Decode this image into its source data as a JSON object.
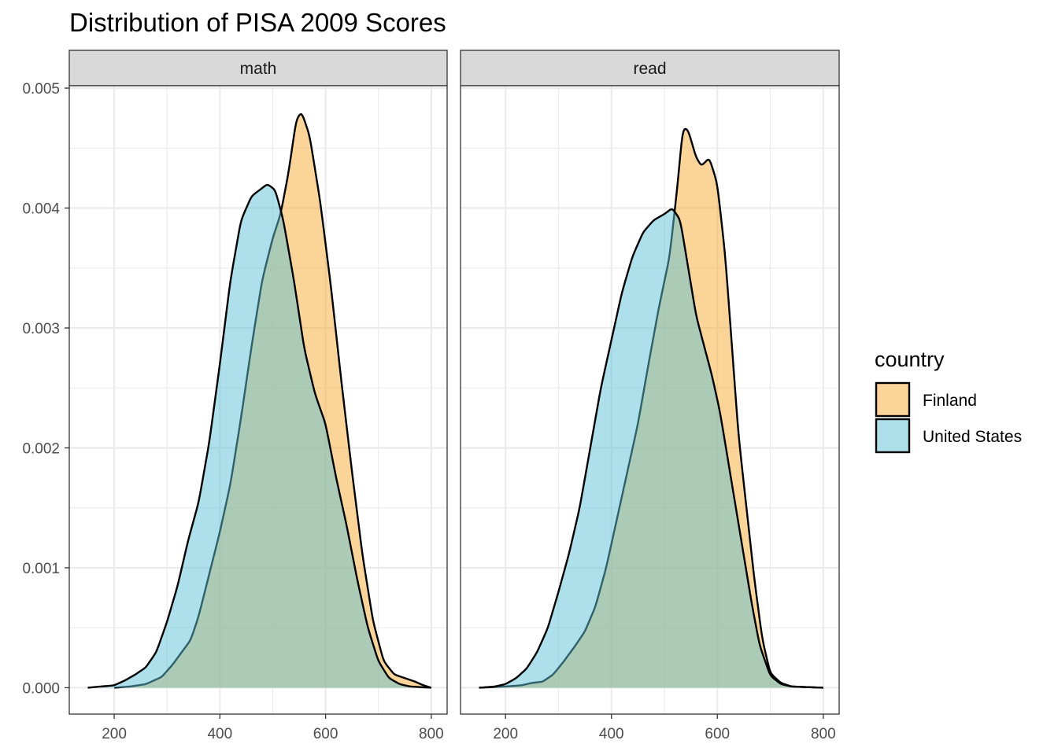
{
  "chart_data": {
    "type": "area",
    "title": "Distribution of PISA 2009 Scores",
    "xlabel": "",
    "ylabel": "",
    "xlim": [
      115,
      830
    ],
    "ylim": [
      -0.00022,
      0.00502
    ],
    "x_ticks": [
      200,
      400,
      600,
      800
    ],
    "y_ticks": [
      0,
      0.001,
      0.002,
      0.003,
      0.004,
      0.005
    ],
    "x_tick_labels": [
      "200",
      "400",
      "600",
      "800"
    ],
    "y_tick_labels": [
      "0.000",
      "0.001",
      "0.002",
      "0.003",
      "0.004",
      "0.005"
    ],
    "grid": true,
    "legend": {
      "title": "country",
      "position": "right",
      "entries": [
        {
          "label": "Finland",
          "color": "#F8A931"
        },
        {
          "label": "United States",
          "color": "#5BC2D6"
        }
      ]
    },
    "fill_alpha": 0.5,
    "panels": [
      {
        "label": "math",
        "series": [
          {
            "name": "Finland",
            "color": "#F8A931",
            "points": [
              [
                200,
                0
              ],
              [
                230,
                1e-05
              ],
              [
                260,
                3e-05
              ],
              [
                290,
                9e-05
              ],
              [
                310,
                0.00019
              ],
              [
                330,
                0.00031
              ],
              [
                345,
                0.0004
              ],
              [
                360,
                0.0006
              ],
              [
                380,
                0.00095
              ],
              [
                400,
                0.0013
              ],
              [
                420,
                0.0017
              ],
              [
                440,
                0.00225
              ],
              [
                460,
                0.00285
              ],
              [
                480,
                0.0034
              ],
              [
                500,
                0.00375
              ],
              [
                515,
                0.00395
              ],
              [
                530,
                0.0043
              ],
              [
                545,
                0.00475
              ],
              [
                555,
                0.0048
              ],
              [
                570,
                0.0046
              ],
              [
                590,
                0.00405
              ],
              [
                610,
                0.00335
              ],
              [
                630,
                0.00255
              ],
              [
                650,
                0.0018
              ],
              [
                670,
                0.0011
              ],
              [
                690,
                0.00055
              ],
              [
                710,
                0.00022
              ],
              [
                730,
                0.00011
              ],
              [
                750,
                8e-05
              ],
              [
                770,
                5e-05
              ],
              [
                785,
                2e-05
              ],
              [
                800,
                0
              ]
            ]
          },
          {
            "name": "United States",
            "color": "#5BC2D6",
            "points": [
              [
                150,
                0
              ],
              [
                200,
                2e-05
              ],
              [
                220,
                6e-05
              ],
              [
                240,
                0.00011
              ],
              [
                260,
                0.00017
              ],
              [
                280,
                0.0003
              ],
              [
                300,
                0.00055
              ],
              [
                320,
                0.00085
              ],
              [
                340,
                0.00123
              ],
              [
                360,
                0.00155
              ],
              [
                380,
                0.00205
              ],
              [
                400,
                0.0027
              ],
              [
                420,
                0.0034
              ],
              [
                440,
                0.0039
              ],
              [
                460,
                0.0041
              ],
              [
                475,
                0.00415
              ],
              [
                490,
                0.0042
              ],
              [
                505,
                0.00415
              ],
              [
                520,
                0.0039
              ],
              [
                540,
                0.0034
              ],
              [
                560,
                0.00282
              ],
              [
                580,
                0.00245
              ],
              [
                600,
                0.0022
              ],
              [
                620,
                0.00175
              ],
              [
                640,
                0.00135
              ],
              [
                660,
                0.0009
              ],
              [
                680,
                0.0005
              ],
              [
                700,
                0.00022
              ],
              [
                720,
                8e-05
              ],
              [
                740,
                3e-05
              ],
              [
                760,
                1e-05
              ],
              [
                800,
                0
              ]
            ]
          }
        ]
      },
      {
        "label": "read",
        "series": [
          {
            "name": "Finland",
            "color": "#F8A931",
            "points": [
              [
                150,
                0
              ],
              [
                200,
                1e-05
              ],
              [
                230,
                2e-05
              ],
              [
                250,
                4e-05
              ],
              [
                270,
                5e-05
              ],
              [
                290,
                0.00011
              ],
              [
                310,
                0.00022
              ],
              [
                330,
                0.00034
              ],
              [
                350,
                0.00047
              ],
              [
                370,
                0.00068
              ],
              [
                390,
                0.001
              ],
              [
                410,
                0.0014
              ],
              [
                430,
                0.0018
              ],
              [
                450,
                0.0022
              ],
              [
                470,
                0.0027
              ],
              [
                490,
                0.00318
              ],
              [
                510,
                0.0036
              ],
              [
                525,
                0.0042
              ],
              [
                535,
                0.00468
              ],
              [
                545,
                0.00465
              ],
              [
                560,
                0.00442
              ],
              [
                570,
                0.00435
              ],
              [
                585,
                0.00442
              ],
              [
                600,
                0.0042
              ],
              [
                615,
                0.0036
              ],
              [
                625,
                0.003
              ],
              [
                640,
                0.0021
              ],
              [
                655,
                0.0015
              ],
              [
                670,
                0.0009
              ],
              [
                685,
                0.0004
              ],
              [
                700,
                0.00012
              ],
              [
                720,
                4e-05
              ],
              [
                740,
                1e-05
              ],
              [
                800,
                0
              ]
            ]
          },
          {
            "name": "United States",
            "color": "#5BC2D6",
            "points": [
              [
                150,
                0
              ],
              [
                180,
                1e-05
              ],
              [
                200,
                3e-05
              ],
              [
                220,
                8e-05
              ],
              [
                240,
                0.00016
              ],
              [
                260,
                0.0003
              ],
              [
                280,
                0.0005
              ],
              [
                300,
                0.0008
              ],
              [
                320,
                0.00112
              ],
              [
                340,
                0.0015
              ],
              [
                360,
                0.002
              ],
              [
                380,
                0.0025
              ],
              [
                400,
                0.0029
              ],
              [
                420,
                0.0033
              ],
              [
                440,
                0.0036
              ],
              [
                460,
                0.0038
              ],
              [
                480,
                0.0039
              ],
              [
                500,
                0.00395
              ],
              [
                515,
                0.004
              ],
              [
                530,
                0.0039
              ],
              [
                545,
                0.0035
              ],
              [
                560,
                0.0031
              ],
              [
                575,
                0.00285
              ],
              [
                590,
                0.0026
              ],
              [
                605,
                0.0023
              ],
              [
                620,
                0.0019
              ],
              [
                635,
                0.0015
              ],
              [
                650,
                0.0011
              ],
              [
                665,
                0.0007
              ],
              [
                680,
                0.00035
              ],
              [
                700,
                0.0001
              ],
              [
                720,
                3e-05
              ],
              [
                740,
                1e-05
              ],
              [
                800,
                0
              ]
            ]
          }
        ]
      }
    ]
  }
}
